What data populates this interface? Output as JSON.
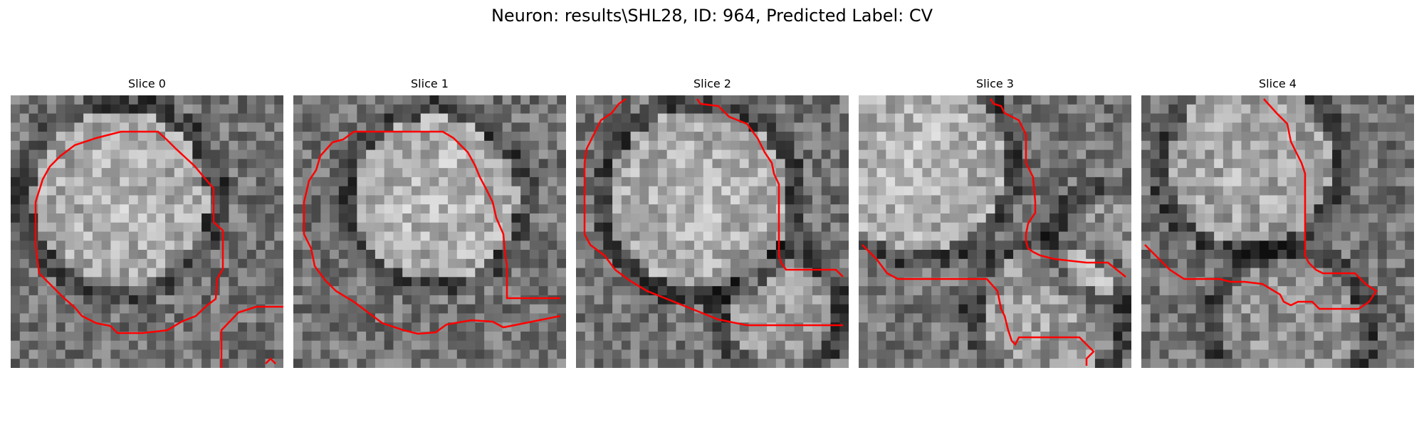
{
  "figure": {
    "title": "Neuron: results\\SHL28, ID: 964, Predicted Label: CV"
  },
  "panels": [
    {
      "title": "Slice 0",
      "contour_color": "#ff0000"
    },
    {
      "title": "Slice 1",
      "contour_color": "#ff0000"
    },
    {
      "title": "Slice 2",
      "contour_color": "#ff0000"
    },
    {
      "title": "Slice 3",
      "contour_color": "#ff0000"
    },
    {
      "title": "Slice 4",
      "contour_color": "#ff0000"
    }
  ]
}
